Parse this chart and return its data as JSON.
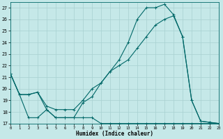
{
  "xlabel": "Humidex (Indice chaleur)",
  "background_color": "#c5e8e8",
  "grid_color": "#a8d0d0",
  "line_color": "#006868",
  "xlim": [
    0,
    23
  ],
  "ylim": [
    17,
    27.5
  ],
  "yticks": [
    17,
    18,
    19,
    20,
    21,
    22,
    23,
    24,
    25,
    26,
    27
  ],
  "xticks": [
    0,
    1,
    2,
    3,
    4,
    5,
    6,
    7,
    8,
    9,
    10,
    11,
    12,
    13,
    14,
    15,
    16,
    17,
    18,
    19,
    20,
    21,
    22,
    23
  ],
  "line_max_x": [
    0,
    1,
    2,
    3,
    4,
    5,
    6,
    7,
    8,
    9,
    10,
    11,
    12,
    13,
    14,
    15,
    16,
    17,
    18,
    19,
    20,
    21,
    22,
    23
  ],
  "line_max_y": [
    21.3,
    19.5,
    19.5,
    19.7,
    18.2,
    17.5,
    17.5,
    17.5,
    18.8,
    19.3,
    20.5,
    21.5,
    22.5,
    24.0,
    26.0,
    27.0,
    27.0,
    27.3,
    26.4,
    24.5,
    19.0,
    17.2,
    17.1,
    17.0
  ],
  "line_avg_x": [
    0,
    1,
    2,
    3,
    4,
    5,
    6,
    7,
    8,
    9,
    10,
    11,
    12,
    13,
    14,
    15,
    16,
    17,
    18,
    19,
    20,
    21,
    22,
    23
  ],
  "line_avg_y": [
    21.3,
    19.5,
    19.5,
    19.7,
    18.5,
    18.2,
    18.2,
    18.2,
    19.0,
    20.0,
    20.5,
    21.5,
    22.0,
    22.5,
    23.5,
    24.5,
    25.5,
    26.0,
    26.3,
    24.5,
    19.0,
    17.2,
    17.1,
    17.0
  ],
  "line_min_x": [
    0,
    1,
    2,
    3,
    4,
    5,
    6,
    7,
    8,
    9,
    10,
    11,
    12,
    13,
    14,
    15,
    16,
    17,
    18,
    19,
    20,
    21,
    22,
    23
  ],
  "line_min_y": [
    21.3,
    19.5,
    17.5,
    17.5,
    18.2,
    17.5,
    17.5,
    17.5,
    17.5,
    17.5,
    17.0,
    17.0,
    17.0,
    17.0,
    17.0,
    17.0,
    17.0,
    17.0,
    17.0,
    17.0,
    17.0,
    17.0,
    17.0,
    17.0
  ],
  "lw": 0.8,
  "ms": 2.5
}
